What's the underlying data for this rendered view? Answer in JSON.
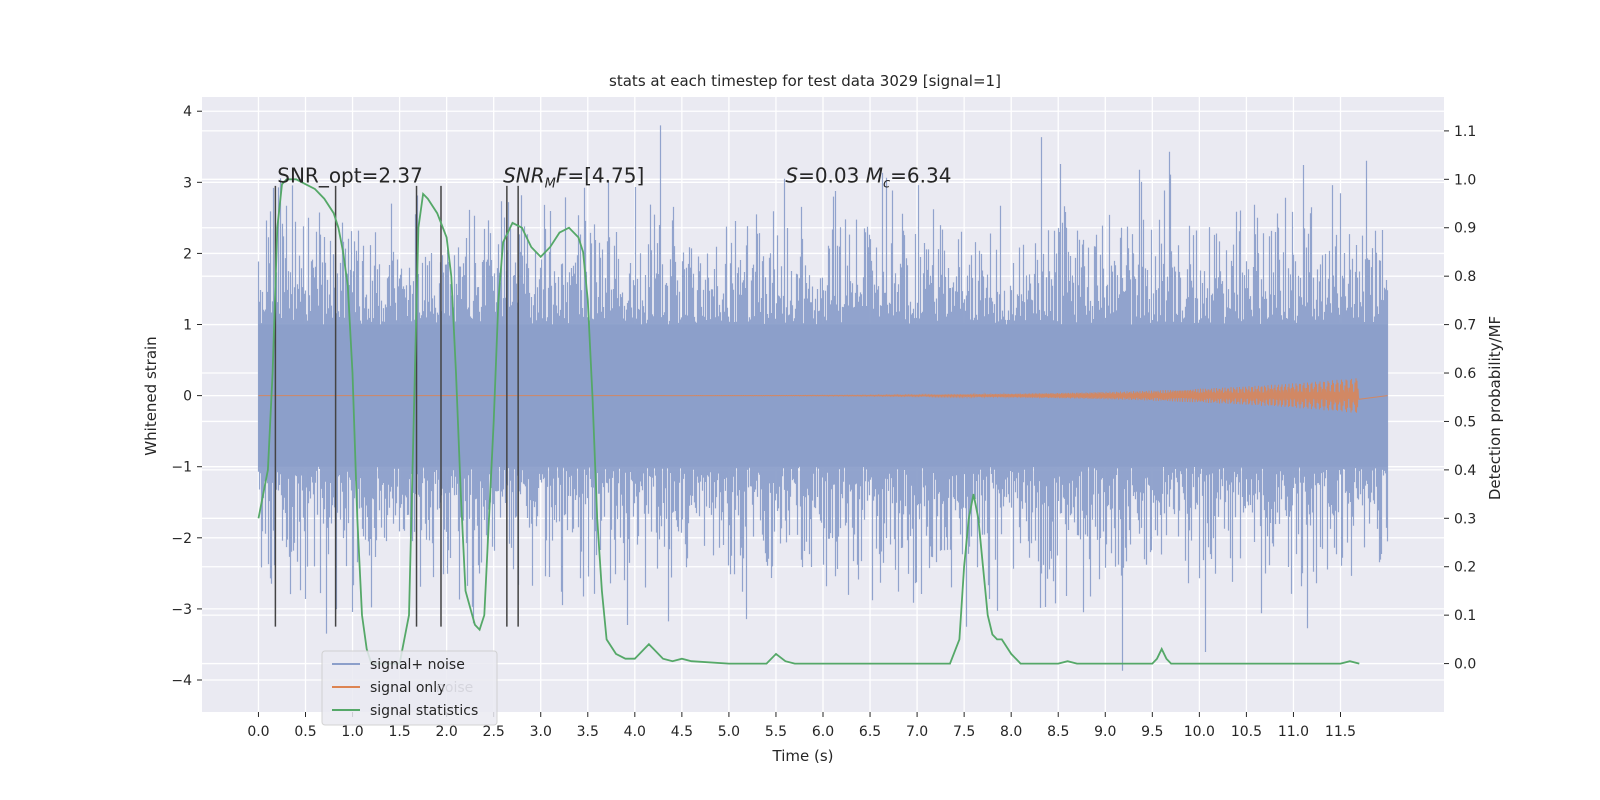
{
  "chart_data": {
    "type": "line",
    "title": "stats at each timestep for test data 3029 [signal=1]",
    "xlabel": "Time (s)",
    "ylabel": "Whitened strain",
    "y2label": "Detection probability/MF",
    "xlim": [
      -0.6,
      12.6
    ],
    "ylim": [
      -4.45,
      4.2
    ],
    "y2lim": [
      -0.1,
      1.17
    ],
    "xticks": [
      0.0,
      0.5,
      1.0,
      1.5,
      2.0,
      2.5,
      3.0,
      3.5,
      4.0,
      4.5,
      5.0,
      5.5,
      6.0,
      6.5,
      7.0,
      7.5,
      8.0,
      8.5,
      9.0,
      9.5,
      10.0,
      10.5,
      11.0,
      11.5
    ],
    "xtick_labels": [
      "0.0",
      "0.5",
      "1.0",
      "1.5",
      "2.0",
      "2.5",
      "3.0",
      "3.5",
      "4.0",
      "4.5",
      "5.0",
      "5.5",
      "6.0",
      "6.5",
      "7.0",
      "7.5",
      "8.0",
      "8.5",
      "9.0",
      "9.5",
      "10.0",
      "10.5",
      "11.0",
      "11.5"
    ],
    "yticks": [
      -4,
      -3,
      -2,
      -1,
      0,
      1,
      2,
      3,
      4
    ],
    "ytick_labels": [
      "−4",
      "−3",
      "−2",
      "−1",
      "0",
      "1",
      "2",
      "3",
      "4"
    ],
    "y2ticks": [
      0.0,
      0.1,
      0.2,
      0.3,
      0.4,
      0.5,
      0.6,
      0.7,
      0.8,
      0.9,
      1.0,
      1.1
    ],
    "y2tick_labels": [
      "0.0",
      "0.1",
      "0.2",
      "0.3",
      "0.4",
      "0.5",
      "0.6",
      "0.7",
      "0.8",
      "0.9",
      "1.0",
      "1.1"
    ],
    "grid": true,
    "legend_position": "lower-left",
    "series": [
      {
        "name": "signal+ noise",
        "color": "#8c9fca",
        "kind": "noise-band",
        "x_range": [
          0.0,
          12.0
        ],
        "typical_amplitude": 1.6,
        "peak_max": 3.8,
        "peak_min": -4.0
      },
      {
        "name": "signal only",
        "color": "#dd8452",
        "kind": "chirp",
        "x_range": [
          0.0,
          11.7
        ],
        "peak_amplitude": 0.25
      },
      {
        "name": "signal statistics",
        "color": "#55a868",
        "axis": "right",
        "x": [
          0.0,
          0.1,
          0.15,
          0.2,
          0.25,
          0.3,
          0.4,
          0.5,
          0.6,
          0.7,
          0.8,
          0.85,
          0.9,
          0.95,
          1.0,
          1.05,
          1.1,
          1.15,
          1.2,
          1.3,
          1.4,
          1.5,
          1.6,
          1.65,
          1.7,
          1.75,
          1.8,
          1.9,
          2.0,
          2.05,
          2.1,
          2.15,
          2.2,
          2.3,
          2.35,
          2.4,
          2.5,
          2.55,
          2.6,
          2.7,
          2.8,
          2.9,
          3.0,
          3.1,
          3.2,
          3.3,
          3.4,
          3.45,
          3.5,
          3.55,
          3.6,
          3.65,
          3.7,
          3.8,
          3.9,
          4.0,
          4.1,
          4.15,
          4.2,
          4.25,
          4.3,
          4.4,
          4.5,
          4.6,
          5.0,
          5.4,
          5.5,
          5.6,
          5.7,
          6.0,
          7.0,
          7.35,
          7.45,
          7.5,
          7.55,
          7.6,
          7.65,
          7.7,
          7.75,
          7.8,
          7.85,
          7.9,
          8.0,
          8.1,
          8.2,
          8.3,
          8.5,
          8.6,
          8.7,
          9.0,
          9.5,
          9.55,
          9.6,
          9.65,
          9.7,
          9.8,
          10.0,
          11.0,
          11.5,
          11.6,
          11.7
        ],
        "values": [
          0.3,
          0.4,
          0.6,
          0.9,
          0.99,
          1.0,
          1.0,
          0.99,
          0.98,
          0.96,
          0.93,
          0.9,
          0.85,
          0.78,
          0.6,
          0.3,
          0.1,
          0.03,
          0.0,
          0.0,
          0.0,
          0.0,
          0.1,
          0.5,
          0.9,
          0.97,
          0.96,
          0.93,
          0.88,
          0.8,
          0.6,
          0.35,
          0.15,
          0.08,
          0.07,
          0.1,
          0.5,
          0.75,
          0.87,
          0.91,
          0.9,
          0.86,
          0.84,
          0.86,
          0.89,
          0.9,
          0.88,
          0.85,
          0.75,
          0.55,
          0.3,
          0.15,
          0.05,
          0.02,
          0.01,
          0.01,
          0.03,
          0.04,
          0.03,
          0.02,
          0.01,
          0.005,
          0.01,
          0.005,
          0.0,
          0.0,
          0.02,
          0.005,
          0.0,
          0.0,
          0.0,
          0.0,
          0.05,
          0.2,
          0.3,
          0.35,
          0.3,
          0.2,
          0.1,
          0.06,
          0.05,
          0.05,
          0.02,
          0.0,
          0.0,
          0.0,
          0.0,
          0.005,
          0.0,
          0.0,
          0.0,
          0.01,
          0.03,
          0.01,
          0.0,
          0.0,
          0.0,
          0.0,
          0.0,
          0.005,
          0.0
        ]
      }
    ],
    "vertical_markers": {
      "color": "#444444",
      "x": [
        0.18,
        0.82,
        1.68,
        1.94,
        2.64,
        2.76
      ],
      "y_from": -3.25,
      "y_to": 2.95
    },
    "annotations": [
      {
        "name": "snr-opt-annotation",
        "text": "SNR_opt=2.37",
        "x": 0.2,
        "y": 3.0
      },
      {
        "name": "snr-mf-annotation",
        "html": "<tspan font-style='italic'>SNR</tspan><tspan font-style='italic' font-size='13' dy='5'>M</tspan><tspan font-style='italic' dy='-5'>F</tspan>=[4.75]",
        "x": 2.6,
        "y": 3.0
      },
      {
        "name": "s-mc-annotation",
        "html": "<tspan font-style='italic'>S</tspan>=0.03   <tspan font-style='italic'>M</tspan><tspan font-style='italic' font-size='13' dy='5'>c</tspan><tspan dy='-5'>=6.34</tspan>",
        "x": 5.6,
        "y": 3.0
      }
    ],
    "legend": [
      {
        "label": "signal+ noise",
        "color": "#8c9fca"
      },
      {
        "label": "signal only",
        "color": "#dd8452"
      },
      {
        "label": "signal statistics",
        "color": "#55a868"
      }
    ],
    "legend_ghost_text": "noise"
  }
}
